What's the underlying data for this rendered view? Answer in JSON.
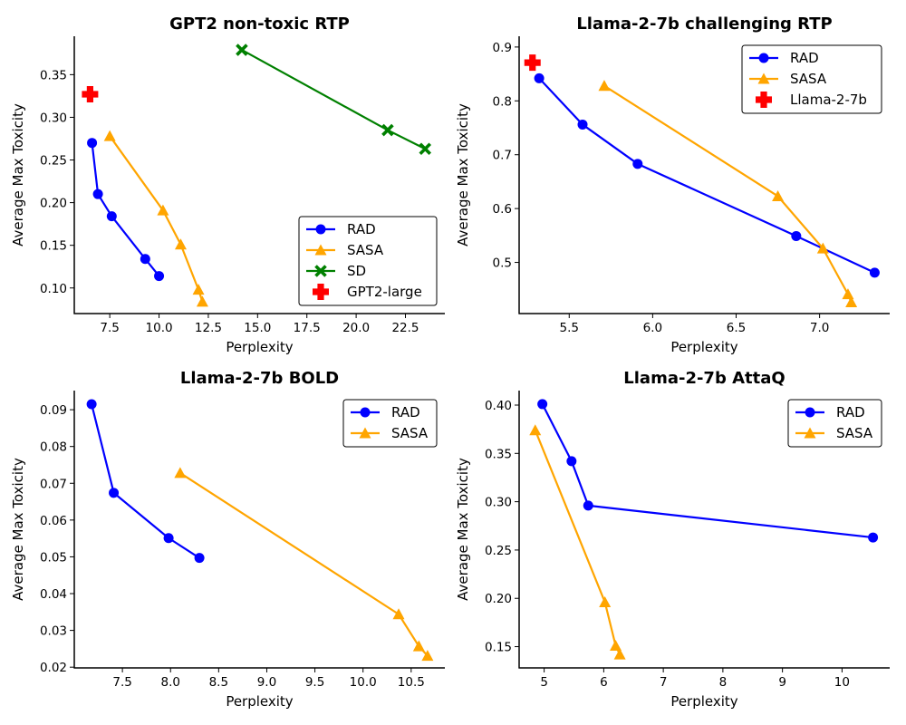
{
  "chart_data": [
    {
      "type": "line",
      "title": "GPT2 non-toxic RTP",
      "xlabel": "Perplexity",
      "ylabel": "Average Max Toxicity",
      "xlim": [
        5.7,
        24.5
      ],
      "ylim": [
        0.07,
        0.395
      ],
      "xticks": [
        7.5,
        10.0,
        12.5,
        15.0,
        17.5,
        20.0,
        22.5
      ],
      "xtick_labels": [
        "7.5",
        "10.0",
        "12.5",
        "15.0",
        "17.5",
        "20.0",
        "22.5"
      ],
      "yticks": [
        0.1,
        0.15,
        0.2,
        0.25,
        0.3,
        0.35
      ],
      "ytick_labels": [
        "0.10",
        "0.15",
        "0.20",
        "0.25",
        "0.30",
        "0.35"
      ],
      "legend_position": "lower-right",
      "series": [
        {
          "name": "RAD",
          "color": "#0000ff",
          "marker": "circle",
          "line": true,
          "x": [
            6.6,
            6.9,
            7.6,
            9.3,
            10.0
          ],
          "y": [
            0.27,
            0.21,
            0.184,
            0.134,
            0.114
          ]
        },
        {
          "name": "SASA",
          "color": "#ffa500",
          "marker": "triangle",
          "line": true,
          "x": [
            7.5,
            10.2,
            11.1,
            12.0,
            12.2
          ],
          "y": [
            0.278,
            0.191,
            0.151,
            0.098,
            0.084
          ]
        },
        {
          "name": "SD",
          "color": "#008000",
          "marker": "x",
          "line": true,
          "x": [
            14.2,
            21.6,
            23.5
          ],
          "y": [
            0.379,
            0.285,
            0.263
          ]
        },
        {
          "name": "GPT2-large",
          "color": "#ff0000",
          "marker": "plus",
          "line": false,
          "x": [
            6.5
          ],
          "y": [
            0.327
          ]
        }
      ]
    },
    {
      "type": "line",
      "title": "Llama-2-7b challenging RTP",
      "xlabel": "Perplexity",
      "ylabel": "Average Max Toxicity",
      "xlim": [
        5.2,
        7.42
      ],
      "ylim": [
        0.405,
        0.92
      ],
      "xticks": [
        5.5,
        6.0,
        6.5,
        7.0
      ],
      "xtick_labels": [
        "5.5",
        "6.0",
        "6.5",
        "7.0"
      ],
      "yticks": [
        0.5,
        0.6,
        0.7,
        0.8,
        0.9
      ],
      "ytick_labels": [
        "0.5",
        "0.6",
        "0.7",
        "0.8",
        "0.9"
      ],
      "legend_position": "top-right",
      "series": [
        {
          "name": "RAD",
          "color": "#0000ff",
          "marker": "circle",
          "line": true,
          "x": [
            5.32,
            5.58,
            5.91,
            6.86,
            7.33
          ],
          "y": [
            0.842,
            0.756,
            0.683,
            0.549,
            0.481
          ]
        },
        {
          "name": "SASA",
          "color": "#ffa500",
          "marker": "triangle",
          "line": true,
          "x": [
            5.71,
            6.75,
            7.02,
            7.17,
            7.19
          ],
          "y": [
            0.828,
            0.623,
            0.526,
            0.441,
            0.426
          ]
        },
        {
          "name": "Llama-2-7b",
          "color": "#ff0000",
          "marker": "plus",
          "line": false,
          "x": [
            5.28
          ],
          "y": [
            0.871
          ]
        }
      ]
    },
    {
      "type": "line",
      "title": "Llama-2-7b BOLD",
      "xlabel": "Perplexity",
      "ylabel": "Average Max Toxicity",
      "xlim": [
        7.0,
        10.85
      ],
      "ylim": [
        0.0198,
        0.0952
      ],
      "xticks": [
        7.5,
        8.0,
        8.5,
        9.0,
        9.5,
        10.0,
        10.5
      ],
      "xtick_labels": [
        "7.5",
        "8.0",
        "8.5",
        "9.0",
        "9.5",
        "10.0",
        "10.5"
      ],
      "yticks": [
        0.02,
        0.03,
        0.04,
        0.05,
        0.06,
        0.07,
        0.08,
        0.09
      ],
      "ytick_labels": [
        "0.02",
        "0.03",
        "0.04",
        "0.05",
        "0.06",
        "0.07",
        "0.08",
        "0.09"
      ],
      "legend_position": "top-right",
      "series": [
        {
          "name": "RAD",
          "color": "#0000ff",
          "marker": "circle",
          "line": true,
          "x": [
            7.18,
            7.41,
            7.98,
            8.3
          ],
          "y": [
            0.0915,
            0.0674,
            0.0551,
            0.0497
          ]
        },
        {
          "name": "SASA",
          "color": "#ffa500",
          "marker": "triangle",
          "line": true,
          "x": [
            8.1,
            10.37,
            10.58,
            10.67
          ],
          "y": [
            0.0728,
            0.0344,
            0.0257,
            0.0231
          ]
        }
      ]
    },
    {
      "type": "line",
      "title": "Llama-2-7b AttaQ",
      "xlabel": "Perplexity",
      "ylabel": "Average Max Toxicity",
      "xlim": [
        4.58,
        10.8
      ],
      "ylim": [
        0.128,
        0.415
      ],
      "xticks": [
        5,
        6,
        7,
        8,
        9,
        10
      ],
      "xtick_labels": [
        "5",
        "6",
        "7",
        "8",
        "9",
        "10"
      ],
      "yticks": [
        0.15,
        0.2,
        0.25,
        0.3,
        0.35,
        0.4
      ],
      "ytick_labels": [
        "0.15",
        "0.20",
        "0.25",
        "0.30",
        "0.35",
        "0.40"
      ],
      "legend_position": "top-right",
      "series": [
        {
          "name": "RAD",
          "color": "#0000ff",
          "marker": "circle",
          "line": true,
          "x": [
            4.97,
            5.46,
            5.74,
            10.52
          ],
          "y": [
            0.401,
            0.342,
            0.296,
            0.263
          ]
        },
        {
          "name": "SASA",
          "color": "#ffa500",
          "marker": "triangle",
          "line": true,
          "x": [
            4.85,
            6.02,
            6.2,
            6.27
          ],
          "y": [
            0.374,
            0.196,
            0.151,
            0.142
          ]
        }
      ]
    }
  ]
}
